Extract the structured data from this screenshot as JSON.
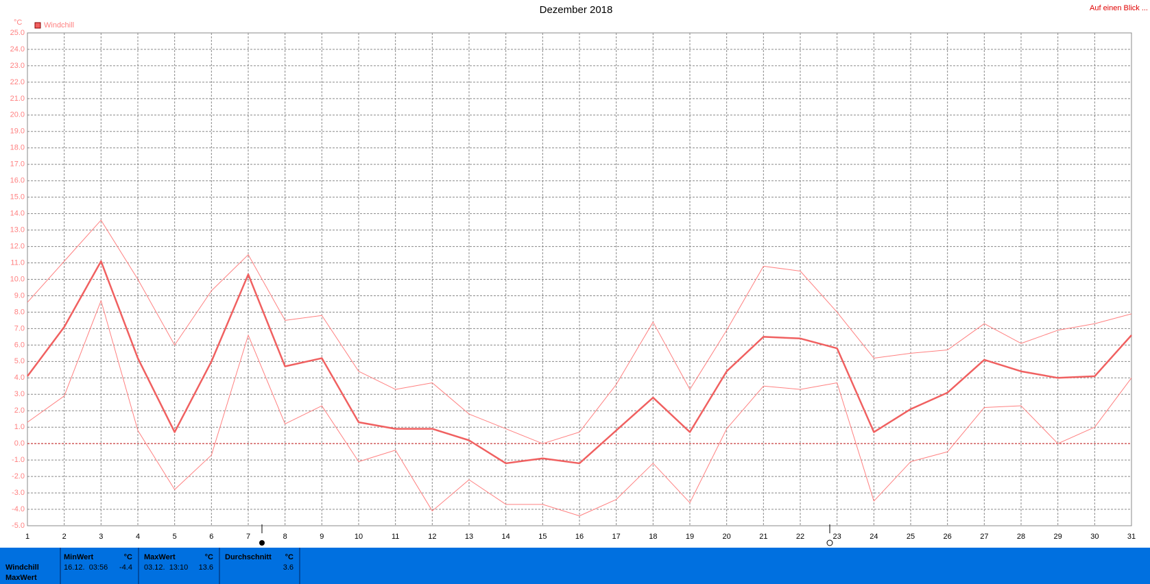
{
  "chart_data": {
    "type": "line",
    "title": "Dezember 2018",
    "link": "Auf einen Blick ...",
    "unit": "°C",
    "x": [
      1,
      2,
      3,
      4,
      5,
      6,
      7,
      8,
      9,
      10,
      11,
      12,
      13,
      14,
      15,
      16,
      17,
      18,
      19,
      20,
      21,
      22,
      23,
      24,
      25,
      26,
      27,
      28,
      29,
      30,
      31
    ],
    "xlim": [
      1,
      31
    ],
    "xticks": [
      1,
      2,
      3,
      4,
      5,
      6,
      7,
      8,
      9,
      10,
      11,
      12,
      13,
      14,
      15,
      16,
      17,
      18,
      19,
      20,
      21,
      22,
      23,
      24,
      25,
      26,
      27,
      28,
      29,
      30,
      31
    ],
    "ylim": [
      -5,
      25
    ],
    "yticks": [
      {
        "value": -5,
        "label": "-5.0"
      },
      {
        "value": -4,
        "label": "-4.0"
      },
      {
        "value": -3,
        "label": "-3.0"
      },
      {
        "value": -2,
        "label": "-2.0"
      },
      {
        "value": -1,
        "label": "-1.0"
      },
      {
        "value": 0,
        "label": "0.0"
      },
      {
        "value": 1,
        "label": "1.0"
      },
      {
        "value": 2,
        "label": "2.0"
      },
      {
        "value": 3,
        "label": "3.0"
      },
      {
        "value": 4,
        "label": "4.0"
      },
      {
        "value": 5,
        "label": "5.0"
      },
      {
        "value": 6,
        "label": "6.0"
      },
      {
        "value": 7,
        "label": "7.0"
      },
      {
        "value": 8,
        "label": "8.0"
      },
      {
        "value": 9,
        "label": "9.0"
      },
      {
        "value": 10,
        "label": "10.0"
      },
      {
        "value": 11,
        "label": "11.0"
      },
      {
        "value": 12,
        "label": "12.0"
      },
      {
        "value": 13,
        "label": "13.0"
      },
      {
        "value": 14,
        "label": "14.0"
      },
      {
        "value": 15,
        "label": "15.0"
      },
      {
        "value": 16,
        "label": "16.0"
      },
      {
        "value": 17,
        "label": "17.0"
      },
      {
        "value": 18,
        "label": "18.0"
      },
      {
        "value": 19,
        "label": "19.0"
      },
      {
        "value": 20,
        "label": "20.0"
      },
      {
        "value": 21,
        "label": "21.0"
      },
      {
        "value": 22,
        "label": "22.0"
      },
      {
        "value": 23,
        "label": "23.0"
      },
      {
        "value": 24,
        "label": "24.0"
      },
      {
        "value": 25,
        "label": "25.0"
      }
    ],
    "grid": true,
    "zero_line": true,
    "series": [
      {
        "color": "#ff8080",
        "width": 1,
        "values": [
          8.6,
          11.1,
          13.6,
          10.0,
          6.0,
          9.3,
          11.5,
          7.5,
          7.8,
          4.4,
          3.3,
          3.7,
          1.8,
          0.9,
          0.0,
          0.7,
          3.6,
          7.4,
          3.3,
          6.9,
          10.8,
          10.5,
          8.0,
          5.2,
          5.5,
          5.7,
          7.3,
          6.1,
          6.9,
          7.3,
          7.9
        ]
      },
      {
        "name": "Windchill",
        "color": "#f06060",
        "width": 2.5,
        "values": [
          4.1,
          7.1,
          11.1,
          5.2,
          0.7,
          5.0,
          10.3,
          4.7,
          5.2,
          1.3,
          0.9,
          0.9,
          0.2,
          -1.2,
          -0.9,
          -1.2,
          0.8,
          2.8,
          0.7,
          4.4,
          6.5,
          6.4,
          5.8,
          0.7,
          2.1,
          3.1,
          5.1,
          4.4,
          4.0,
          4.1,
          6.6
        ]
      },
      {
        "color": "#ff8080",
        "width": 1,
        "values": [
          1.3,
          2.9,
          8.7,
          0.8,
          -2.8,
          -0.7,
          6.6,
          1.2,
          2.3,
          -1.1,
          -0.4,
          -4.1,
          -2.2,
          -3.7,
          -3.7,
          -4.4,
          -3.4,
          -1.2,
          -3.6,
          0.9,
          3.5,
          3.3,
          3.7,
          -3.5,
          -1.1,
          -0.5,
          2.2,
          2.3,
          0.0,
          1.0,
          4.0
        ]
      }
    ]
  },
  "stats": {
    "row_labels": [
      "Windchill",
      "MaxWert"
    ],
    "columns": [
      {
        "header": "MinWert",
        "unit": "°C",
        "time": "16.12.  03:56",
        "value": "-4.4"
      },
      {
        "header": "MaxWert",
        "unit": "°C",
        "time": "03.12.  13:10",
        "value": "13.6"
      },
      {
        "header": "Durchschnitt",
        "unit": "°C",
        "time": "",
        "value": "3.6"
      }
    ]
  }
}
